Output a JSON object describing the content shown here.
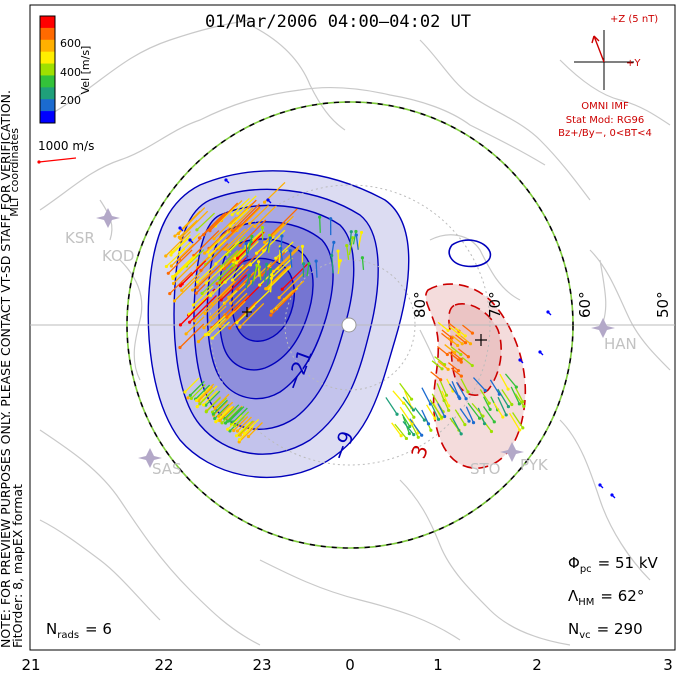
{
  "title": "01/Mar/2006 04:00–04:02 UT",
  "colorbar": {
    "label": "Vel [m/s]",
    "ticks": [
      "600",
      "400",
      "200"
    ],
    "colors": [
      "#ff0000",
      "#ff6a00",
      "#ffb000",
      "#ffee00",
      "#9fe000",
      "#33c23a",
      "#1fa07a",
      "#1b6bd0",
      "#0000ff"
    ]
  },
  "coord_label": "MLT coordinates",
  "scale_vector": {
    "label": "1000 m/s",
    "color": "#ff0000"
  },
  "side_note_1": "NOTE: FOR PREVIEW PURPOSES ONLY. PLEASE CONTACT VT-SD STAFF FOR VERIFICATION.",
  "side_note_2": "FitOrder: 8, mapEX format",
  "imf": {
    "z_label": "+Z (5 nT)",
    "y_label": "+Y",
    "source": "OMNI IMF",
    "model": "Stat Mod: RG96",
    "condition": "Bz+/By−, 0<BT<4",
    "color": "#cc0000"
  },
  "contours": {
    "neg_label_1": "−21",
    "neg_label_2": "−9",
    "pos_label": "3",
    "neg_color": "#0000bb",
    "pos_color": "#cc0000"
  },
  "lat_labels": [
    "80°",
    "70°",
    "60°",
    "50°"
  ],
  "stations": [
    "KSR",
    "KOD",
    "SAS",
    "STO",
    "PYK",
    "HAN"
  ],
  "stats": {
    "phi_sym": "Φ",
    "phi_sub": "pc",
    "phi_value": "= 51 kV",
    "lambda_sym": "Λ",
    "lambda_sub": "HM",
    "lambda_value": "= 62°",
    "nvc_sym": "N",
    "nvc_sub": "vc",
    "nvc_value": "= 290",
    "nrads_sym": "N",
    "nrads_sub": "rads",
    "nrads_value": "= 6"
  },
  "mlt_axis": [
    "21",
    "22",
    "23",
    "0",
    "1",
    "2",
    "3"
  ]
}
